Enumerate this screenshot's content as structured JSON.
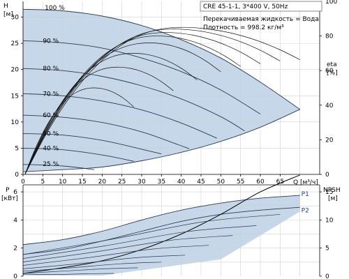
{
  "chart_data": [
    {
      "type": "line",
      "panel": "head",
      "info_box": {
        "model": "CRE 45-1-1, 3*400 V, 50Hz",
        "line1": "Перекачиваемая жидкость = Вода",
        "line2": "Плотность = 998.2 кг/м³"
      },
      "ylabel": "H",
      "ylabel_unit": "[м]",
      "y2label": "eta",
      "y2label_unit": "[%]",
      "xlabel": "Q",
      "xlabel_unit": "[м³/ч]",
      "xlim": [
        0,
        75
      ],
      "ylim": [
        0,
        33
      ],
      "y2lim": [
        0,
        100
      ],
      "x_ticks": [
        0,
        5,
        10,
        15,
        20,
        25,
        30,
        35,
        40,
        45,
        50,
        55,
        60,
        65
      ],
      "y_ticks": [
        0,
        5,
        10,
        15,
        20,
        25,
        30
      ],
      "y2_ticks": [
        0,
        20,
        40,
        60,
        80,
        100
      ],
      "grid": true,
      "speed_labels": [
        {
          "label": "100 %",
          "x": 5.5,
          "y": 31.8
        },
        {
          "label": "90 %",
          "x": 5,
          "y": 25.5
        },
        {
          "label": "80 %",
          "x": 5,
          "y": 20.2
        },
        {
          "label": "70 %",
          "x": 5,
          "y": 15.4
        },
        {
          "label": "60 %",
          "x": 5,
          "y": 11.3
        },
        {
          "label": "50 %",
          "x": 5,
          "y": 7.8
        },
        {
          "label": "40 %",
          "x": 5,
          "y": 5.0
        },
        {
          "label": "25 %",
          "x": 5,
          "y": 2.0
        }
      ],
      "head_curves": [
        {
          "speed": 100,
          "points": [
            [
              0,
              31.5
            ],
            [
              10,
              31.2
            ],
            [
              20,
              30.2
            ],
            [
              30,
              28.4
            ],
            [
              40,
              25.7
            ],
            [
              50,
              22.2
            ],
            [
              60,
              17.6
            ],
            [
              70,
              12.4
            ]
          ]
        },
        {
          "speed": 90,
          "points": [
            [
              0,
              25.5
            ],
            [
              10,
              25.1
            ],
            [
              20,
              24.1
            ],
            [
              30,
              22.2
            ],
            [
              40,
              19.6
            ],
            [
              50,
              16.1
            ],
            [
              60,
              11.5
            ]
          ]
        },
        {
          "speed": 80,
          "points": [
            [
              0,
              20.2
            ],
            [
              10,
              19.8
            ],
            [
              20,
              18.7
            ],
            [
              30,
              16.9
            ],
            [
              40,
              14.4
            ],
            [
              50,
              11.0
            ],
            [
              56,
              8.3
            ]
          ]
        },
        {
          "speed": 70,
          "points": [
            [
              0,
              15.4
            ],
            [
              10,
              15.0
            ],
            [
              20,
              14.0
            ],
            [
              30,
              12.3
            ],
            [
              40,
              9.8
            ],
            [
              49,
              6.9
            ]
          ]
        },
        {
          "speed": 60,
          "points": [
            [
              0,
              11.3
            ],
            [
              10,
              10.9
            ],
            [
              20,
              9.9
            ],
            [
              30,
              8.1
            ],
            [
              38,
              6.0
            ],
            [
              42,
              4.9
            ]
          ]
        },
        {
          "speed": 50,
          "points": [
            [
              0,
              7.8
            ],
            [
              10,
              7.5
            ],
            [
              20,
              6.5
            ],
            [
              30,
              4.8
            ],
            [
              35,
              3.9
            ]
          ]
        },
        {
          "speed": 40,
          "points": [
            [
              0,
              5.0
            ],
            [
              10,
              4.7
            ],
            [
              20,
              3.7
            ],
            [
              28,
              2.5
            ]
          ]
        },
        {
          "speed": 25,
          "points": [
            [
              0,
              1.9
            ],
            [
              10,
              1.6
            ],
            [
              18,
              0.9
            ]
          ]
        }
      ],
      "operating_area_lower_boundary": [
        [
          0,
          0.5
        ],
        [
          10,
          0.9
        ],
        [
          20,
          1.4
        ],
        [
          30,
          2.6
        ],
        [
          40,
          4.2
        ],
        [
          50,
          6.3
        ],
        [
          60,
          9.0
        ],
        [
          70,
          12.4
        ]
      ],
      "efficiency_curves": [
        {
          "peak_x": 40,
          "peak_eta": 85,
          "end_x": 70
        },
        {
          "peak_x": 38,
          "peak_eta": 84,
          "end_x": 65
        },
        {
          "peak_x": 36,
          "peak_eta": 82,
          "end_x": 60
        },
        {
          "peak_x": 34,
          "peak_eta": 80,
          "end_x": 55
        },
        {
          "peak_x": 32,
          "peak_eta": 76,
          "end_x": 50
        },
        {
          "peak_x": 28,
          "peak_eta": 70,
          "end_x": 44
        },
        {
          "peak_x": 24,
          "peak_eta": 62,
          "end_x": 38
        },
        {
          "peak_x": 18,
          "peak_eta": 50,
          "end_x": 28
        }
      ]
    },
    {
      "type": "line",
      "panel": "power_npsh",
      "ylabel": "P",
      "ylabel_unit": "[кВт]",
      "y2label": "NPSH",
      "y2label_unit": "[м]",
      "xlim": [
        0,
        75
      ],
      "ylim": [
        0,
        6.5
      ],
      "y2lim": [
        0,
        16.25
      ],
      "y_ticks": [
        0,
        2,
        4,
        6
      ],
      "y2_ticks": [
        0,
        5,
        10,
        15
      ],
      "grid": true,
      "series_labels": [
        {
          "label": "P1",
          "x": 70,
          "y": 5.85
        },
        {
          "label": "P2",
          "x": 70,
          "y": 4.7
        }
      ],
      "p1_curve": [
        [
          0,
          2.25
        ],
        [
          10,
          2.6
        ],
        [
          20,
          3.2
        ],
        [
          30,
          4.0
        ],
        [
          40,
          4.7
        ],
        [
          50,
          5.2
        ],
        [
          60,
          5.55
        ],
        [
          70,
          5.75
        ]
      ],
      "p2_curve": [
        [
          0,
          1.55
        ],
        [
          10,
          1.9
        ],
        [
          20,
          2.5
        ],
        [
          30,
          3.2
        ],
        [
          40,
          3.9
        ],
        [
          50,
          4.4
        ],
        [
          60,
          4.7
        ],
        [
          70,
          4.9
        ]
      ],
      "npsh_curve": [
        [
          0,
          0.2
        ],
        [
          10,
          0.6
        ],
        [
          20,
          1.1
        ],
        [
          30,
          1.9
        ],
        [
          40,
          3.0
        ],
        [
          50,
          4.4
        ],
        [
          60,
          6.0
        ],
        [
          70,
          7.2
        ]
      ],
      "speed_power_levels": [
        4.4,
        3.6,
        2.9,
        2.2,
        1.5,
        1.0,
        0.6,
        0.2
      ]
    }
  ]
}
